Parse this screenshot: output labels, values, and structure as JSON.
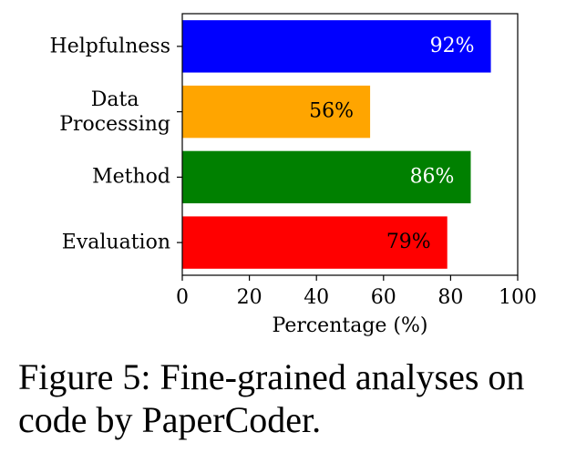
{
  "chart_data": {
    "type": "barh",
    "categories": [
      "Helpfulness",
      "Data\nProcessing",
      "Method",
      "Evaluation"
    ],
    "values": [
      92,
      56,
      86,
      79
    ],
    "value_labels": [
      "92%",
      "56%",
      "86%",
      "79%"
    ],
    "colors": [
      "#0000ff",
      "#ffa500",
      "#008000",
      "#ff0000"
    ],
    "label_colors": [
      "#ffffff",
      "#000000",
      "#ffffff",
      "#000000"
    ],
    "xlabel": "Percentage (%)",
    "xlim": [
      0,
      100
    ],
    "xticks": [
      0,
      20,
      40,
      60,
      80,
      100
    ]
  },
  "caption": "Figure 5: Fine-grained analyses on code by PaperCoder."
}
